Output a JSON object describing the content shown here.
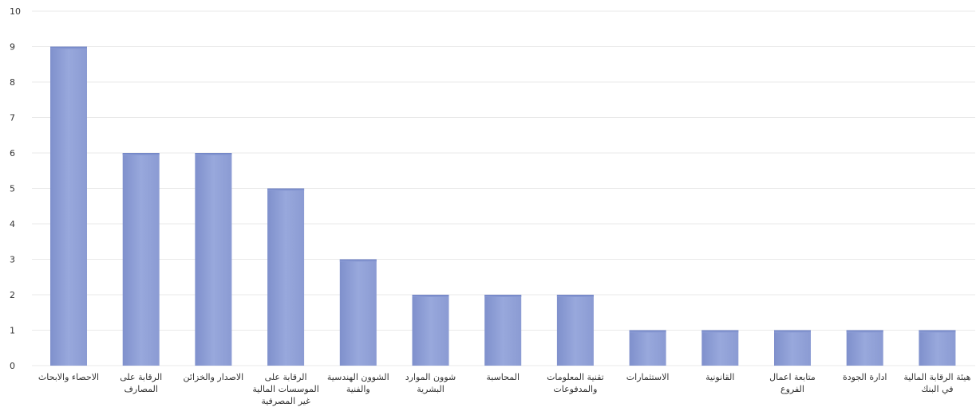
{
  "chart_data": {
    "type": "bar",
    "categories": [
      "الاحصاء والابحاث",
      "الرقابة على المصارف",
      "الاصدار والخزائن",
      "الرقابة على الموسسات المالية غير المصرفية",
      "الشوون الهندسية والفنية",
      "شوون الموارد البشرية",
      "المحاسبة",
      "تقنية المعلومات والمدفوعات",
      "الاستثمارات",
      "القانونية",
      "متابعة اعمال الفروع",
      "ادارة الجودة",
      "هيئة الرقابة المالية في البنك"
    ],
    "category_lines": [
      [
        "الاحصاء والابحاث"
      ],
      [
        "الرقابة على",
        "المصارف"
      ],
      [
        "الاصدار والخزائن"
      ],
      [
        "الرقابة على",
        "الموسسات المالية",
        "غير المصرفية"
      ],
      [
        "الشوون الهندسية",
        "والفنية"
      ],
      [
        "شوون الموارد",
        "البشرية"
      ],
      [
        "المحاسبة"
      ],
      [
        "تقنية المعلومات",
        "والمدفوعات"
      ],
      [
        "الاستثمارات"
      ],
      [
        "القانونية"
      ],
      [
        "متابعة اعمال",
        "الفروع"
      ],
      [
        "ادارة الجودة"
      ],
      [
        "هيئة الرقابة المالية",
        "في البنك"
      ]
    ],
    "values": [
      9,
      6,
      6,
      5,
      3,
      2,
      2,
      2,
      1,
      1,
      1,
      1,
      1
    ],
    "yticks": [
      0,
      1,
      2,
      3,
      4,
      5,
      6,
      7,
      8,
      9,
      10
    ],
    "ylim": [
      0,
      10
    ],
    "grid": true,
    "legend": "none",
    "bar_color": "#8f9fd4",
    "title": "",
    "xlabel": "",
    "ylabel": ""
  }
}
